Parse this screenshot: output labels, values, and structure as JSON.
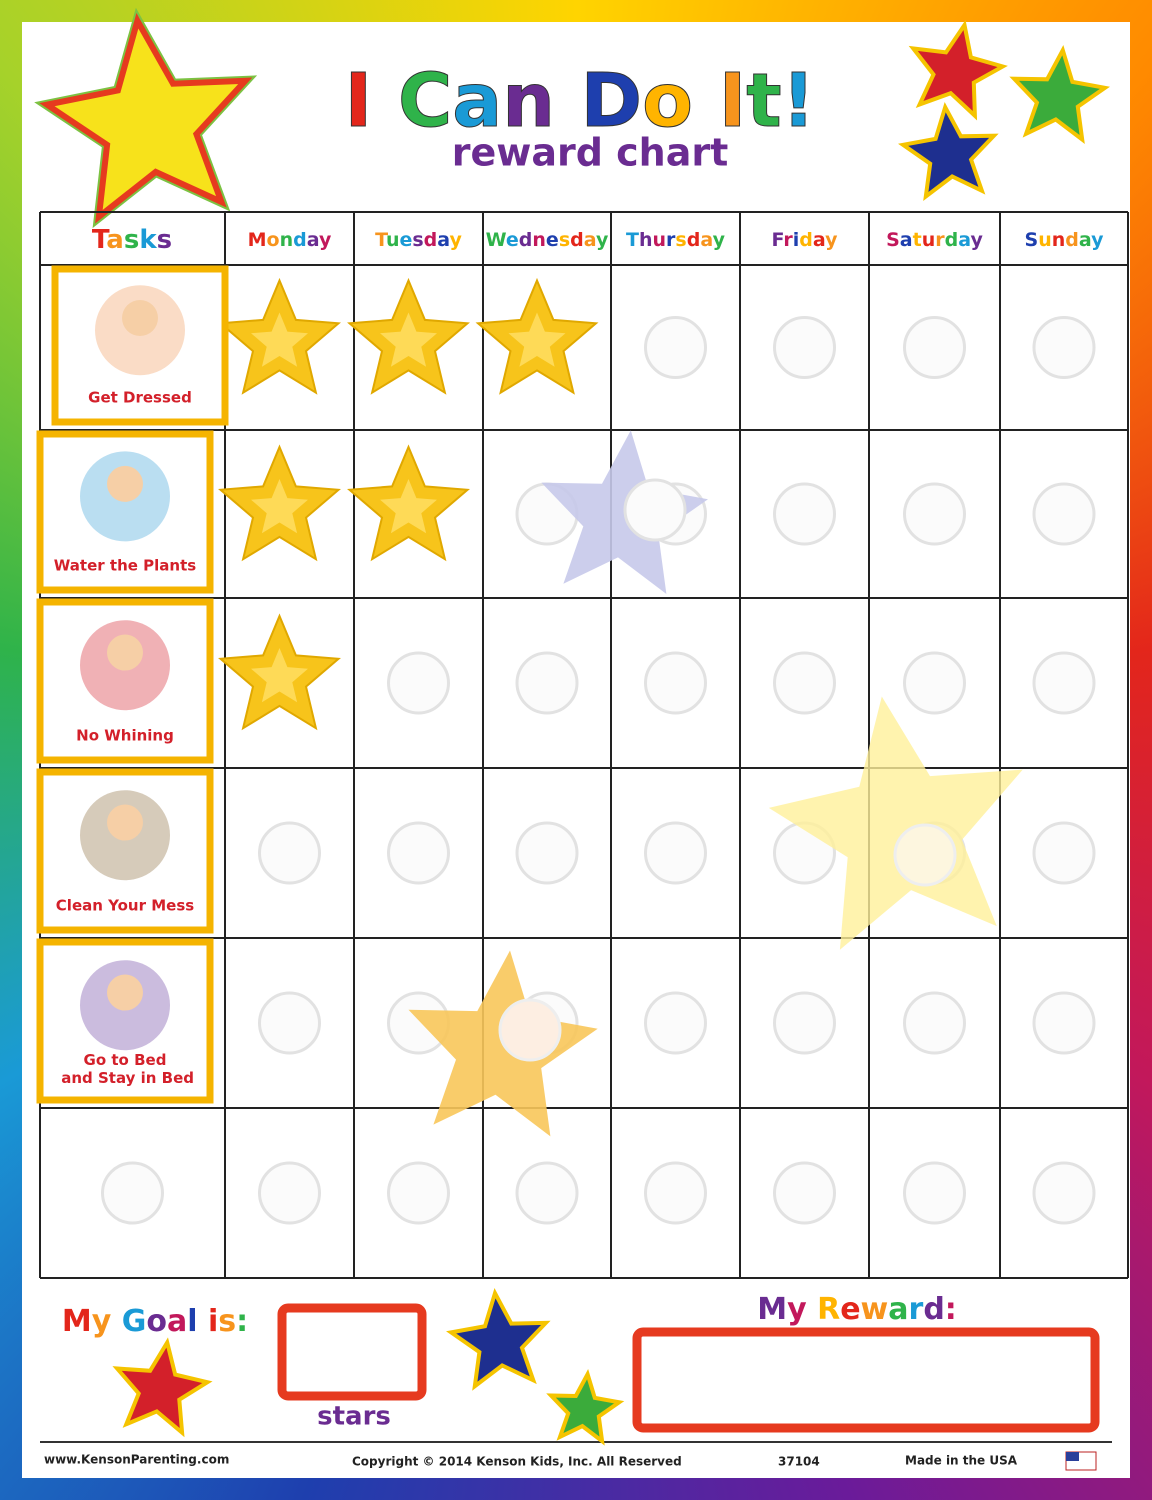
{
  "header": {
    "title": "I Can Do It!",
    "subtitle": "reward chart"
  },
  "grid": {
    "tasks_heading": "Tasks",
    "days": [
      "Monday",
      "Tuesday",
      "Wednesday",
      "Thursday",
      "Friday",
      "Saturday",
      "Sunday"
    ],
    "tasks": [
      "Get Dressed",
      "Water the Plants",
      "No Whining",
      "Clean Your Mess",
      "Go to Bed and Stay in Bed"
    ]
  },
  "bottom": {
    "goal": "My Goal is:",
    "stars": "stars",
    "reward": "My Reward:"
  },
  "footer": {
    "website": "www.KensonParenting.com",
    "copyright": "Copyright © 2014 Kenson Kids, Inc. All Reserved",
    "code": "37104",
    "made": "Made in the USA"
  }
}
